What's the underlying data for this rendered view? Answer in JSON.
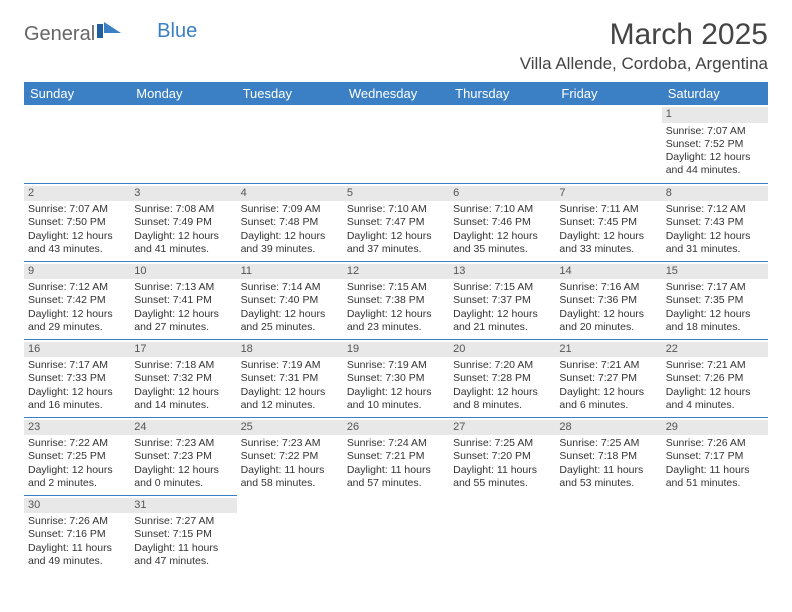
{
  "logo": {
    "text1": "General",
    "text2": "Blue"
  },
  "title": {
    "month": "March 2025",
    "location": "Villa Allende, Cordoba, Argentina"
  },
  "colors": {
    "header_bg": "#3b7fc4",
    "border": "#3b7fc4",
    "daynum_bg": "#e8e8e8"
  },
  "weekdays": [
    "Sunday",
    "Monday",
    "Tuesday",
    "Wednesday",
    "Thursday",
    "Friday",
    "Saturday"
  ],
  "weeks": [
    [
      null,
      null,
      null,
      null,
      null,
      null,
      {
        "n": "1",
        "sr": "Sunrise: 7:07 AM",
        "ss": "Sunset: 7:52 PM",
        "dl": "Daylight: 12 hours and 44 minutes."
      }
    ],
    [
      {
        "n": "2",
        "sr": "Sunrise: 7:07 AM",
        "ss": "Sunset: 7:50 PM",
        "dl": "Daylight: 12 hours and 43 minutes."
      },
      {
        "n": "3",
        "sr": "Sunrise: 7:08 AM",
        "ss": "Sunset: 7:49 PM",
        "dl": "Daylight: 12 hours and 41 minutes."
      },
      {
        "n": "4",
        "sr": "Sunrise: 7:09 AM",
        "ss": "Sunset: 7:48 PM",
        "dl": "Daylight: 12 hours and 39 minutes."
      },
      {
        "n": "5",
        "sr": "Sunrise: 7:10 AM",
        "ss": "Sunset: 7:47 PM",
        "dl": "Daylight: 12 hours and 37 minutes."
      },
      {
        "n": "6",
        "sr": "Sunrise: 7:10 AM",
        "ss": "Sunset: 7:46 PM",
        "dl": "Daylight: 12 hours and 35 minutes."
      },
      {
        "n": "7",
        "sr": "Sunrise: 7:11 AM",
        "ss": "Sunset: 7:45 PM",
        "dl": "Daylight: 12 hours and 33 minutes."
      },
      {
        "n": "8",
        "sr": "Sunrise: 7:12 AM",
        "ss": "Sunset: 7:43 PM",
        "dl": "Daylight: 12 hours and 31 minutes."
      }
    ],
    [
      {
        "n": "9",
        "sr": "Sunrise: 7:12 AM",
        "ss": "Sunset: 7:42 PM",
        "dl": "Daylight: 12 hours and 29 minutes."
      },
      {
        "n": "10",
        "sr": "Sunrise: 7:13 AM",
        "ss": "Sunset: 7:41 PM",
        "dl": "Daylight: 12 hours and 27 minutes."
      },
      {
        "n": "11",
        "sr": "Sunrise: 7:14 AM",
        "ss": "Sunset: 7:40 PM",
        "dl": "Daylight: 12 hours and 25 minutes."
      },
      {
        "n": "12",
        "sr": "Sunrise: 7:15 AM",
        "ss": "Sunset: 7:38 PM",
        "dl": "Daylight: 12 hours and 23 minutes."
      },
      {
        "n": "13",
        "sr": "Sunrise: 7:15 AM",
        "ss": "Sunset: 7:37 PM",
        "dl": "Daylight: 12 hours and 21 minutes."
      },
      {
        "n": "14",
        "sr": "Sunrise: 7:16 AM",
        "ss": "Sunset: 7:36 PM",
        "dl": "Daylight: 12 hours and 20 minutes."
      },
      {
        "n": "15",
        "sr": "Sunrise: 7:17 AM",
        "ss": "Sunset: 7:35 PM",
        "dl": "Daylight: 12 hours and 18 minutes."
      }
    ],
    [
      {
        "n": "16",
        "sr": "Sunrise: 7:17 AM",
        "ss": "Sunset: 7:33 PM",
        "dl": "Daylight: 12 hours and 16 minutes."
      },
      {
        "n": "17",
        "sr": "Sunrise: 7:18 AM",
        "ss": "Sunset: 7:32 PM",
        "dl": "Daylight: 12 hours and 14 minutes."
      },
      {
        "n": "18",
        "sr": "Sunrise: 7:19 AM",
        "ss": "Sunset: 7:31 PM",
        "dl": "Daylight: 12 hours and 12 minutes."
      },
      {
        "n": "19",
        "sr": "Sunrise: 7:19 AM",
        "ss": "Sunset: 7:30 PM",
        "dl": "Daylight: 12 hours and 10 minutes."
      },
      {
        "n": "20",
        "sr": "Sunrise: 7:20 AM",
        "ss": "Sunset: 7:28 PM",
        "dl": "Daylight: 12 hours and 8 minutes."
      },
      {
        "n": "21",
        "sr": "Sunrise: 7:21 AM",
        "ss": "Sunset: 7:27 PM",
        "dl": "Daylight: 12 hours and 6 minutes."
      },
      {
        "n": "22",
        "sr": "Sunrise: 7:21 AM",
        "ss": "Sunset: 7:26 PM",
        "dl": "Daylight: 12 hours and 4 minutes."
      }
    ],
    [
      {
        "n": "23",
        "sr": "Sunrise: 7:22 AM",
        "ss": "Sunset: 7:25 PM",
        "dl": "Daylight: 12 hours and 2 minutes."
      },
      {
        "n": "24",
        "sr": "Sunrise: 7:23 AM",
        "ss": "Sunset: 7:23 PM",
        "dl": "Daylight: 12 hours and 0 minutes."
      },
      {
        "n": "25",
        "sr": "Sunrise: 7:23 AM",
        "ss": "Sunset: 7:22 PM",
        "dl": "Daylight: 11 hours and 58 minutes."
      },
      {
        "n": "26",
        "sr": "Sunrise: 7:24 AM",
        "ss": "Sunset: 7:21 PM",
        "dl": "Daylight: 11 hours and 57 minutes."
      },
      {
        "n": "27",
        "sr": "Sunrise: 7:25 AM",
        "ss": "Sunset: 7:20 PM",
        "dl": "Daylight: 11 hours and 55 minutes."
      },
      {
        "n": "28",
        "sr": "Sunrise: 7:25 AM",
        "ss": "Sunset: 7:18 PM",
        "dl": "Daylight: 11 hours and 53 minutes."
      },
      {
        "n": "29",
        "sr": "Sunrise: 7:26 AM",
        "ss": "Sunset: 7:17 PM",
        "dl": "Daylight: 11 hours and 51 minutes."
      }
    ],
    [
      {
        "n": "30",
        "sr": "Sunrise: 7:26 AM",
        "ss": "Sunset: 7:16 PM",
        "dl": "Daylight: 11 hours and 49 minutes."
      },
      {
        "n": "31",
        "sr": "Sunrise: 7:27 AM",
        "ss": "Sunset: 7:15 PM",
        "dl": "Daylight: 11 hours and 47 minutes."
      },
      null,
      null,
      null,
      null,
      null
    ]
  ]
}
